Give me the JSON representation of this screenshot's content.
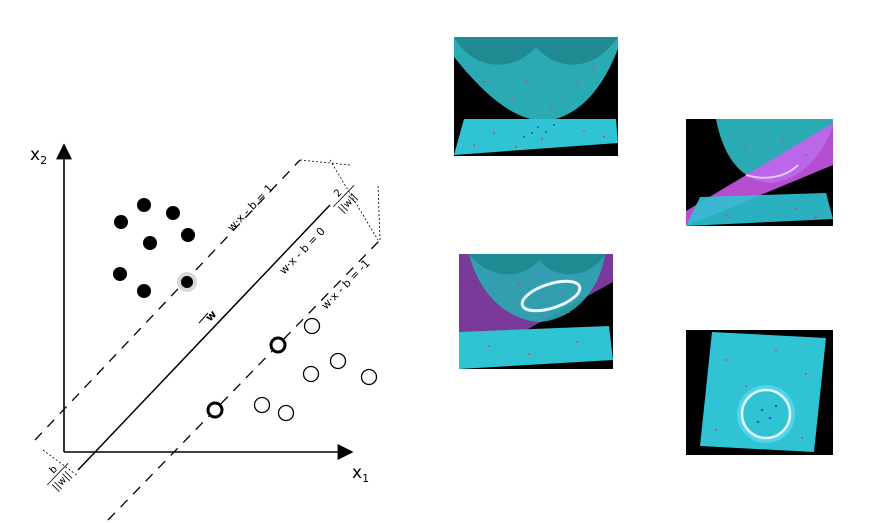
{
  "diagram": {
    "axes": {
      "x_label": "x",
      "x_sub": "1",
      "y_label": "x",
      "y_sub": "2"
    },
    "hyperplanes": {
      "plus_label": "w·x - b = 1",
      "mid_label": "w·x - b = 0",
      "minus_label": "w·x - b = -1"
    },
    "normal_label": "w",
    "margin_label": {
      "num": "2",
      "den": "||w||"
    },
    "offset_label": {
      "num": "b",
      "den": "||w||"
    }
  },
  "colors": {
    "panel_background": "#000000",
    "surface_cyan": "#2ec6cf",
    "plane_cyan": "#2fc3d4",
    "separating_plane_magenta": "#d35cf2",
    "ring_glow": "#e9fbff"
  },
  "panels": [
    "3d-paraboloid-lift",
    "3d-paraboloid-cut-by-plane",
    "3d-intersection-ring",
    "3d-top-view-circle"
  ]
}
